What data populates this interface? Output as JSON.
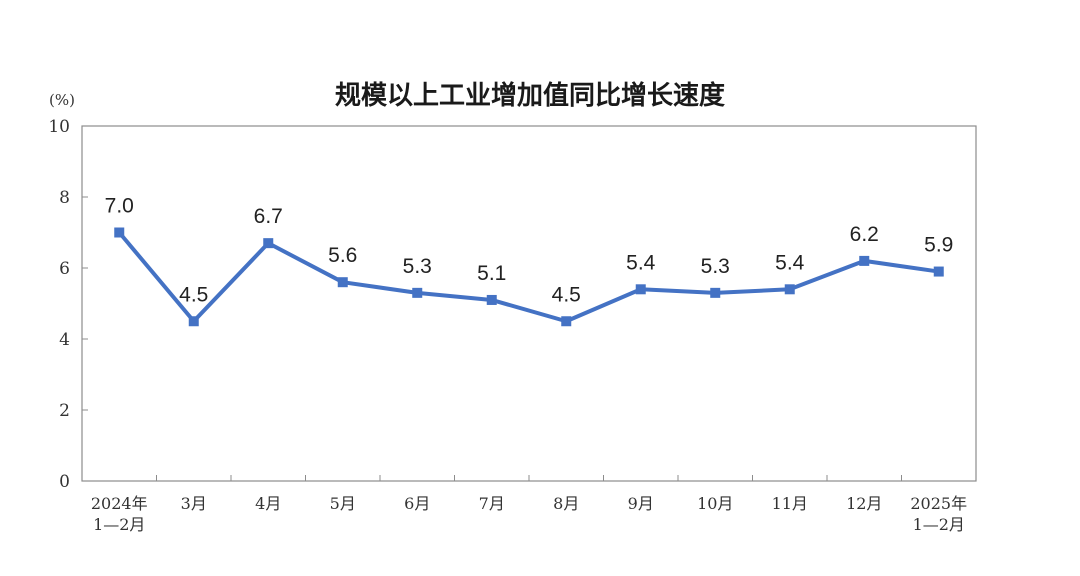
{
  "chart_data": {
    "type": "line",
    "title": "规模以上工业增加值同比增长速度",
    "ylabel": "(%)",
    "xlabel": "",
    "ylim": [
      0,
      10
    ],
    "yticks": [
      0,
      2,
      4,
      6,
      8,
      10
    ],
    "grid": false,
    "legend": "none",
    "categories": [
      [
        "2024年",
        "1—2月"
      ],
      [
        "3月"
      ],
      [
        "4月"
      ],
      [
        "5月"
      ],
      [
        "6月"
      ],
      [
        "7月"
      ],
      [
        "8月"
      ],
      [
        "9月"
      ],
      [
        "10月"
      ],
      [
        "11月"
      ],
      [
        "12月"
      ],
      [
        "2025年",
        "1—2月"
      ]
    ],
    "series": [
      {
        "values": [
          7.0,
          4.5,
          6.7,
          5.6,
          5.3,
          5.1,
          4.5,
          5.4,
          5.3,
          5.4,
          6.2,
          5.9
        ],
        "labels": [
          "7.0",
          "4.5",
          "6.7",
          "5.6",
          "5.3",
          "5.1",
          "4.5",
          "5.4",
          "5.3",
          "5.4",
          "6.2",
          "5.9"
        ]
      }
    ],
    "colors": {
      "line": "#4472C4",
      "axis": "#8c8c8c",
      "text": "#333333"
    }
  }
}
